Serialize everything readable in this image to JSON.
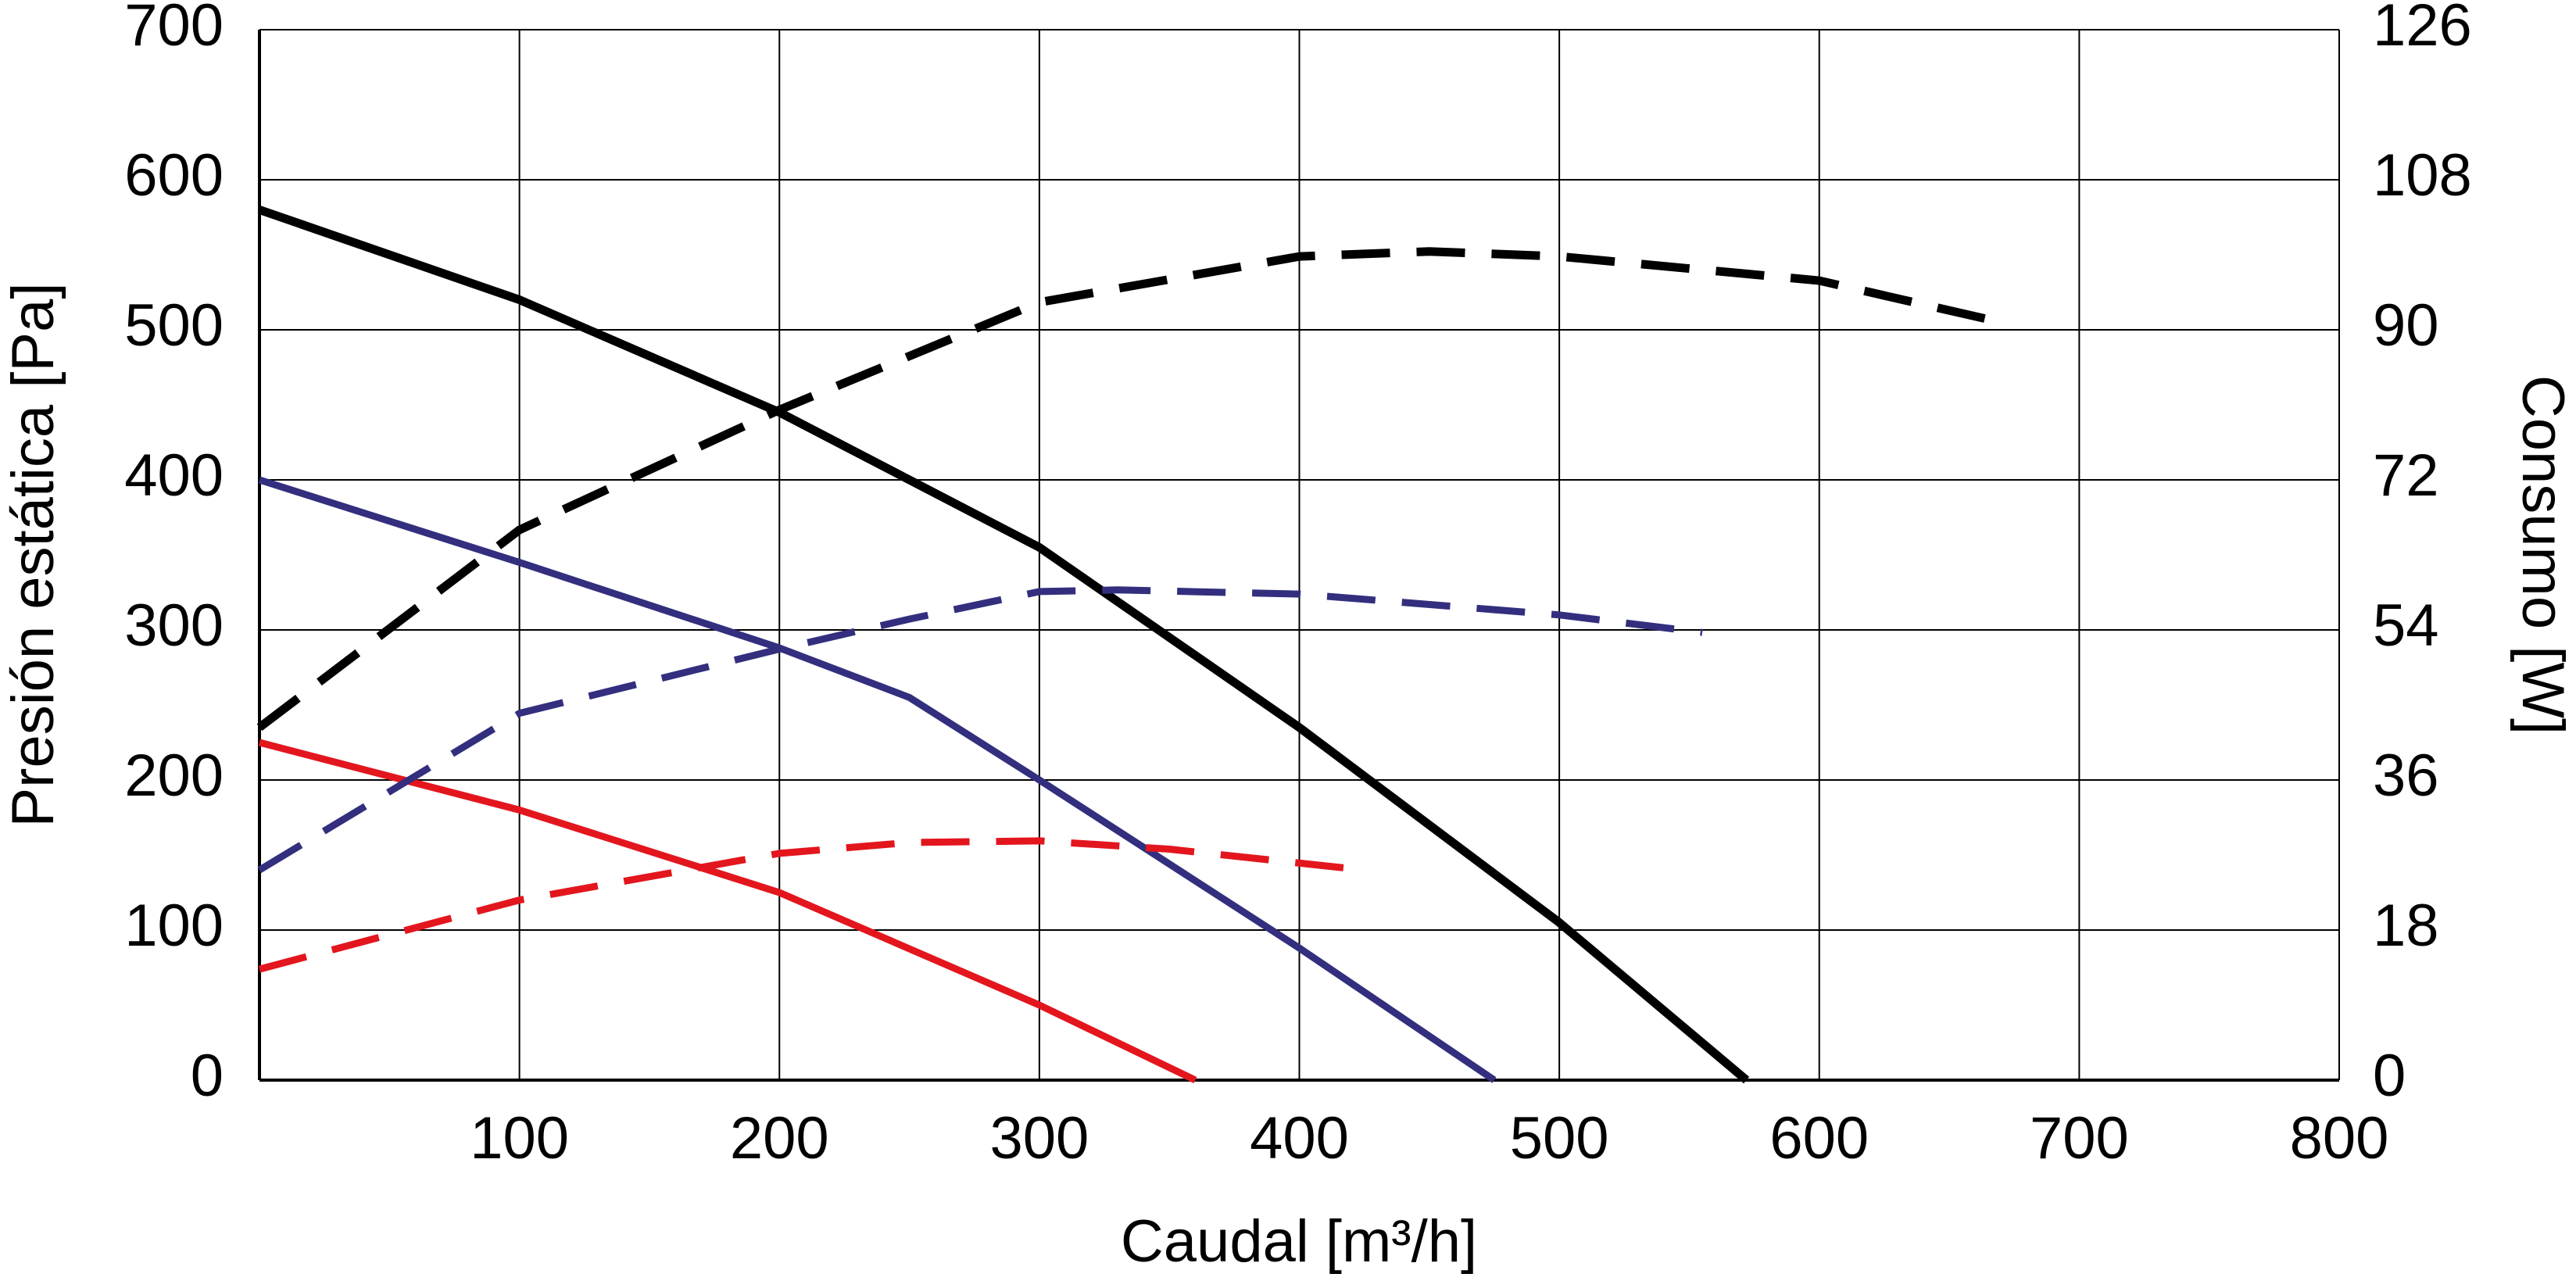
{
  "chart_data": {
    "type": "line",
    "xlabel": "Caudal [m³/h]",
    "ylabel": "Presión estática [Pa]",
    "y2label": "Consumo [W]",
    "xlim": [
      0,
      800
    ],
    "xticks": [
      100,
      200,
      300,
      400,
      500,
      600,
      700,
      800
    ],
    "ylim": [
      0,
      700
    ],
    "yticks": [
      0,
      100,
      200,
      300,
      400,
      500,
      600,
      700
    ],
    "y2lim": [
      0,
      126
    ],
    "y2ticks": [
      0,
      18,
      36,
      54,
      72,
      90,
      108,
      126
    ],
    "grid": true,
    "series": [
      {
        "color": "#000000",
        "dashed": false,
        "x": [
          0,
          100,
          200,
          300,
          400,
          500,
          572
        ],
        "values": [
          580,
          520,
          445,
          355,
          235,
          105,
          0
        ]
      },
      {
        "color": "#332f7e",
        "dashed": false,
        "x": [
          0,
          100,
          200,
          250,
          300,
          400,
          475
        ],
        "values": [
          400,
          345,
          288,
          255,
          200,
          88,
          0
        ]
      },
      {
        "color": "#e3161e",
        "dashed": false,
        "x": [
          0,
          100,
          200,
          300,
          360
        ],
        "values": [
          225,
          180,
          125,
          50,
          0
        ]
      },
      {
        "color": "#000000",
        "dashed": true,
        "axis": "y2",
        "x": [
          0,
          100,
          200,
          300,
          400,
          450,
          500,
          600,
          670
        ],
        "values": [
          42.3,
          66,
          80.4,
          93.3,
          98.8,
          99.4,
          98.8,
          95.9,
          90.9
        ]
      },
      {
        "color": "#332f7e",
        "dashed": true,
        "axis": "y2",
        "x": [
          0,
          100,
          200,
          250,
          300,
          330,
          400,
          500,
          555
        ],
        "values": [
          25.2,
          44,
          51.7,
          55.3,
          58.6,
          58.8,
          58.3,
          55.8,
          53.7
        ]
      },
      {
        "color": "#e3161e",
        "dashed": true,
        "axis": "y2",
        "x": [
          0,
          100,
          200,
          250,
          300,
          350,
          425
        ],
        "values": [
          13.3,
          21.6,
          27.2,
          28.5,
          28.7,
          27.7,
          25.2
        ]
      }
    ]
  }
}
